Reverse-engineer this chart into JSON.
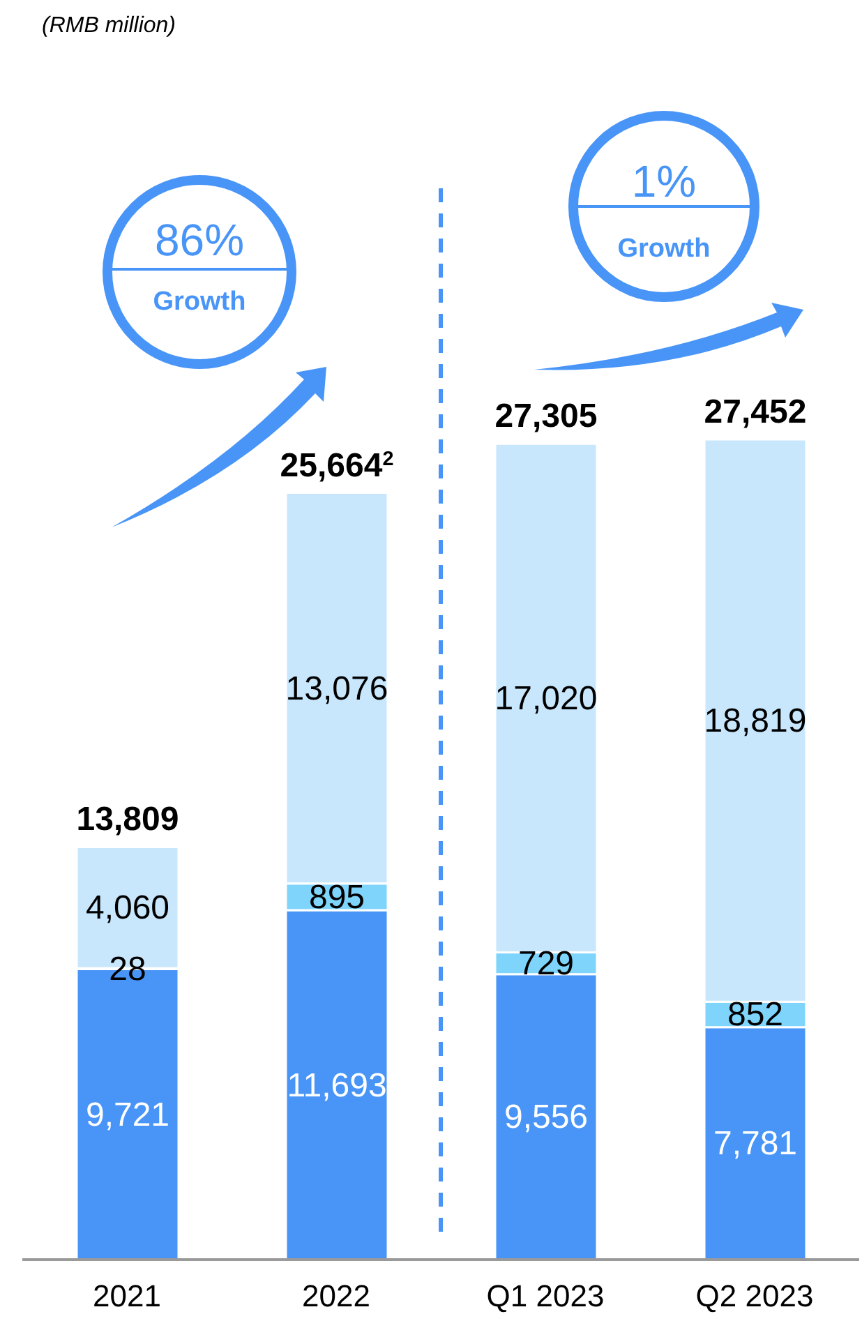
{
  "chart_data": {
    "type": "bar",
    "categories": [
      "2021",
      "2022",
      "Q1 2023",
      "Q2 2023"
    ],
    "stacked": true,
    "series": [
      {
        "color": "#4895f7",
        "values": [
          9721,
          11693,
          9556,
          7781
        ],
        "value_labels": [
          "9,721",
          "11,693",
          "9,556",
          "7,781"
        ]
      },
      {
        "color": "#7fd4fc",
        "values": [
          28,
          895,
          729,
          852
        ],
        "value_labels": [
          "28",
          "895",
          "729",
          "852"
        ]
      },
      {
        "color": "#c9e7fc",
        "values": [
          4060,
          13076,
          17020,
          18819
        ],
        "value_labels": [
          "4,060",
          "13,076",
          "17,020",
          "18,819"
        ]
      }
    ],
    "totals": [
      "13,809",
      "25,664$^{2}$",
      "27,305",
      "27,452"
    ],
    "annotations": [
      "(RMB million)",
      "86%",
      "Growth",
      "1%",
      "Growth"
    ]
  }
}
